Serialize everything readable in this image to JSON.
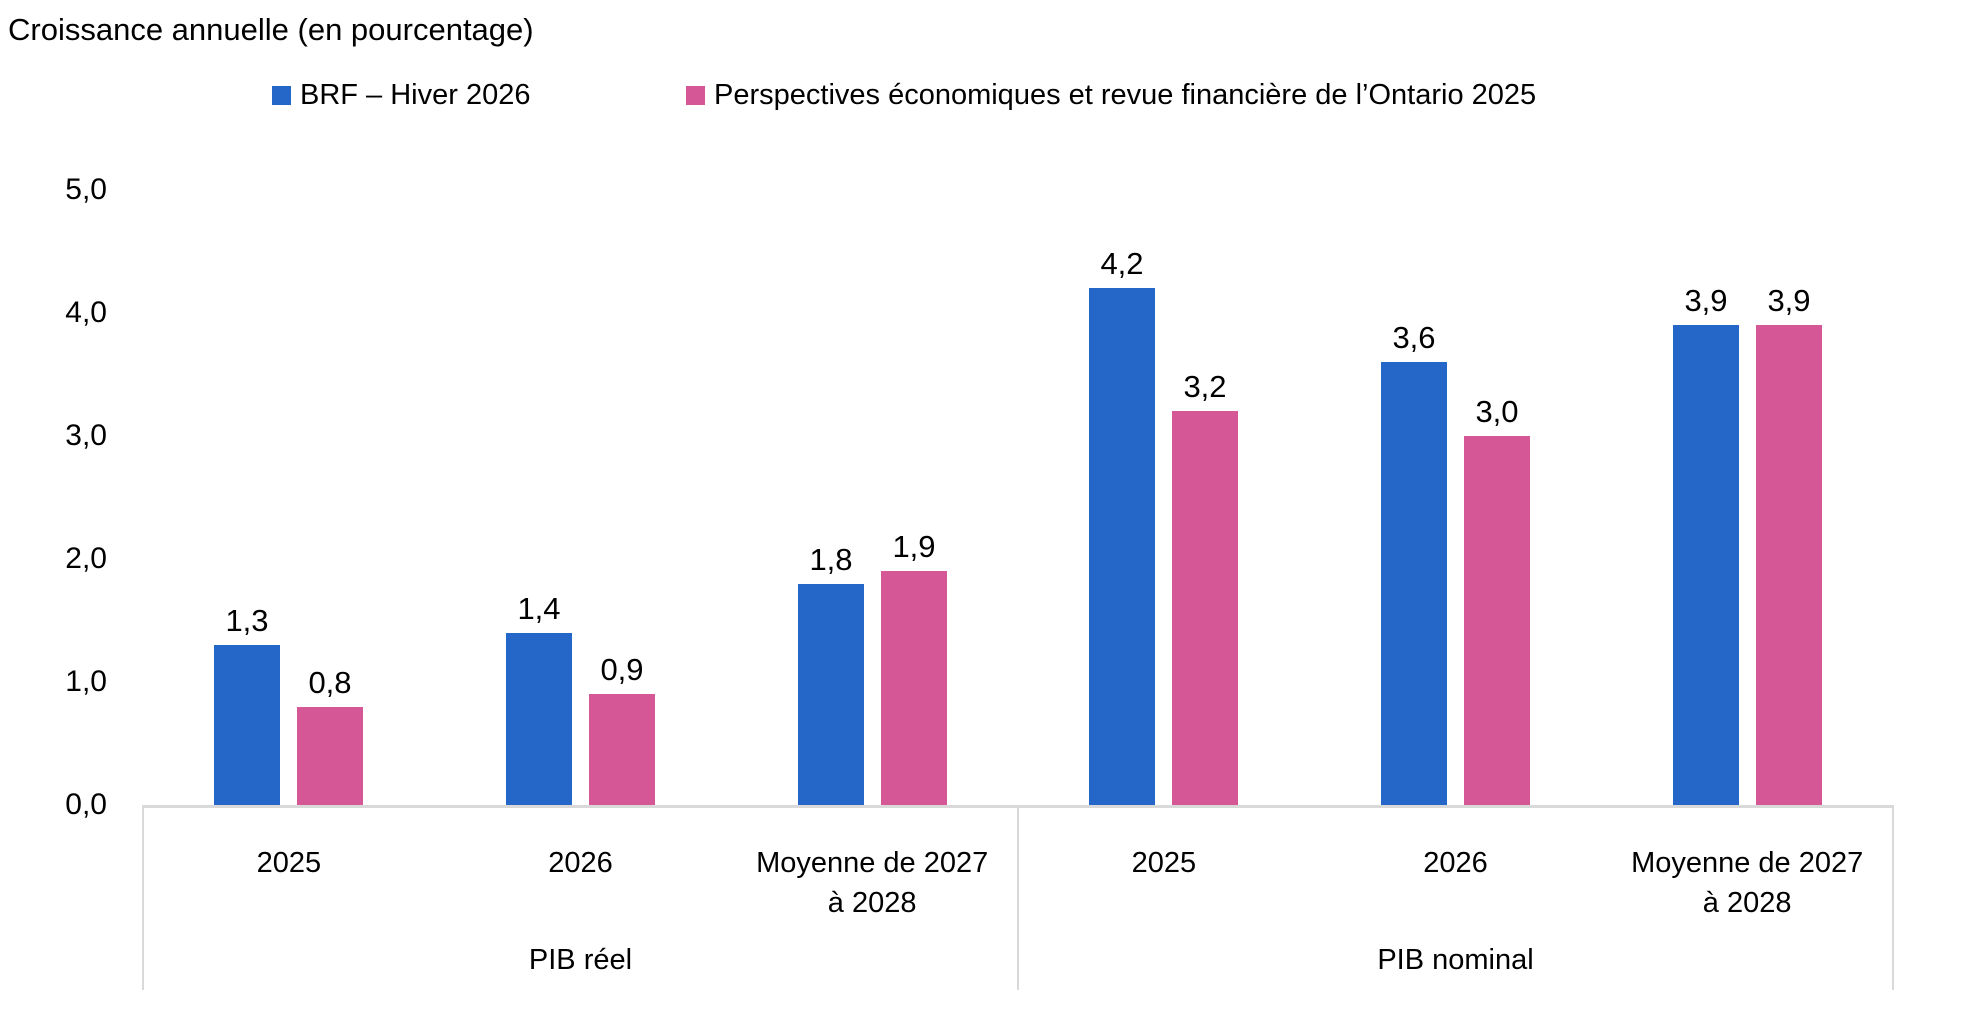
{
  "chart_data": {
    "type": "bar",
    "title": "Croissance annuelle (en pourcentage)",
    "grid": false,
    "legend_position": "top",
    "ylim": [
      0,
      5
    ],
    "y_tick_labels": [
      "0,0",
      "1,0",
      "2,0",
      "3,0",
      "4,0",
      "5,0"
    ],
    "axis_line_color": "#D9D9D9",
    "group_labels": [
      "PIB réel",
      "PIB nominal"
    ],
    "categories": [
      [
        "2025",
        "2026",
        "Moyenne de 2027 à 2028"
      ],
      [
        "2025",
        "2026",
        "Moyenne de 2027 à 2028"
      ]
    ],
    "series": [
      {
        "name": "BRF – Hiver 2026",
        "color": "#2566C9",
        "values": [
          [
            1.3,
            1.4,
            1.8
          ],
          [
            4.2,
            3.6,
            3.9
          ]
        ],
        "value_labels": [
          [
            "1,3",
            "1,4",
            "1,8"
          ],
          [
            "4,2",
            "3,6",
            "3,9"
          ]
        ]
      },
      {
        "name": "Perspectives économiques et revue financière de l’Ontario 2025",
        "color": "#D65795",
        "values": [
          [
            0.8,
            0.9,
            1.9
          ],
          [
            3.2,
            3.0,
            3.9
          ]
        ],
        "value_labels": [
          [
            "0,8",
            "0,9",
            "1,9"
          ],
          [
            "3,2",
            "3,0",
            "3,9"
          ]
        ]
      }
    ]
  }
}
